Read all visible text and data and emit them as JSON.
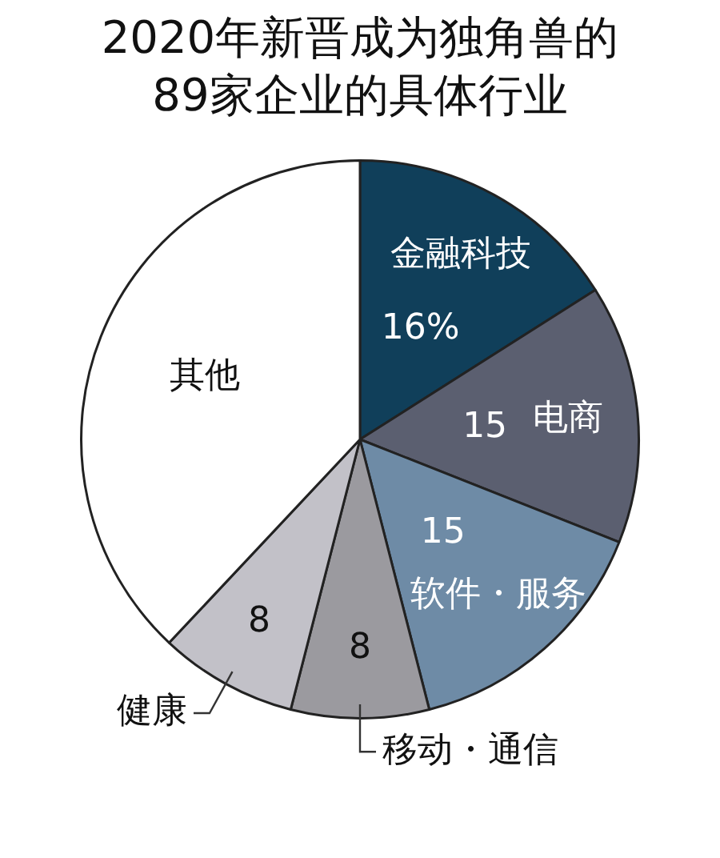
{
  "chart_data": {
    "type": "pie",
    "title": "2020年新晋成为独角兽的89家企业的具体行业",
    "categories": [
      "金融科技",
      "电商",
      "软件・服务",
      "移动・通信",
      "健康",
      "其他"
    ],
    "values": [
      16,
      15,
      15,
      8,
      8,
      38
    ],
    "colors": [
      "#103f5a",
      "#5b5f70",
      "#6e8ba6",
      "#9b9a9f",
      "#c2c1c8",
      "#ffffff"
    ],
    "value_labels": [
      "16%",
      "15",
      "15",
      "8",
      "8",
      null
    ],
    "legend": false
  }
}
